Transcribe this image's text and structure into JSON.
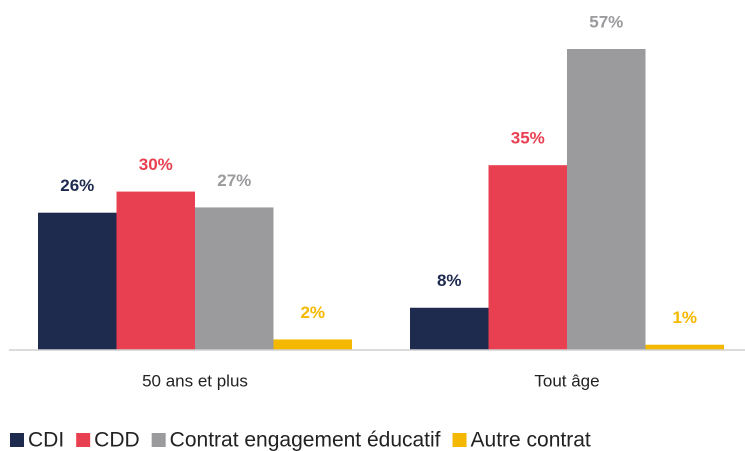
{
  "chart_data": {
    "type": "bar",
    "categories": [
      "50 ans et plus",
      "Tout âge"
    ],
    "series": [
      {
        "name": "CDI",
        "color": "#1f2a4f",
        "values": [
          26,
          8
        ],
        "value_labels": [
          "26%",
          "8%"
        ]
      },
      {
        "name": "CDD",
        "color": "#e84050",
        "values": [
          30,
          35
        ],
        "value_labels": [
          "30%",
          "35%"
        ]
      },
      {
        "name": "Contrat engagement éducatif",
        "color": "#9b9b9e",
        "values": [
          27,
          57
        ],
        "value_labels": [
          "27%",
          "57%"
        ]
      },
      {
        "name": "Autre contrat",
        "color": "#f5b800",
        "values": [
          2,
          1
        ],
        "value_labels": [
          "2%",
          "1%"
        ]
      }
    ],
    "ylim": [
      0,
      57
    ]
  }
}
